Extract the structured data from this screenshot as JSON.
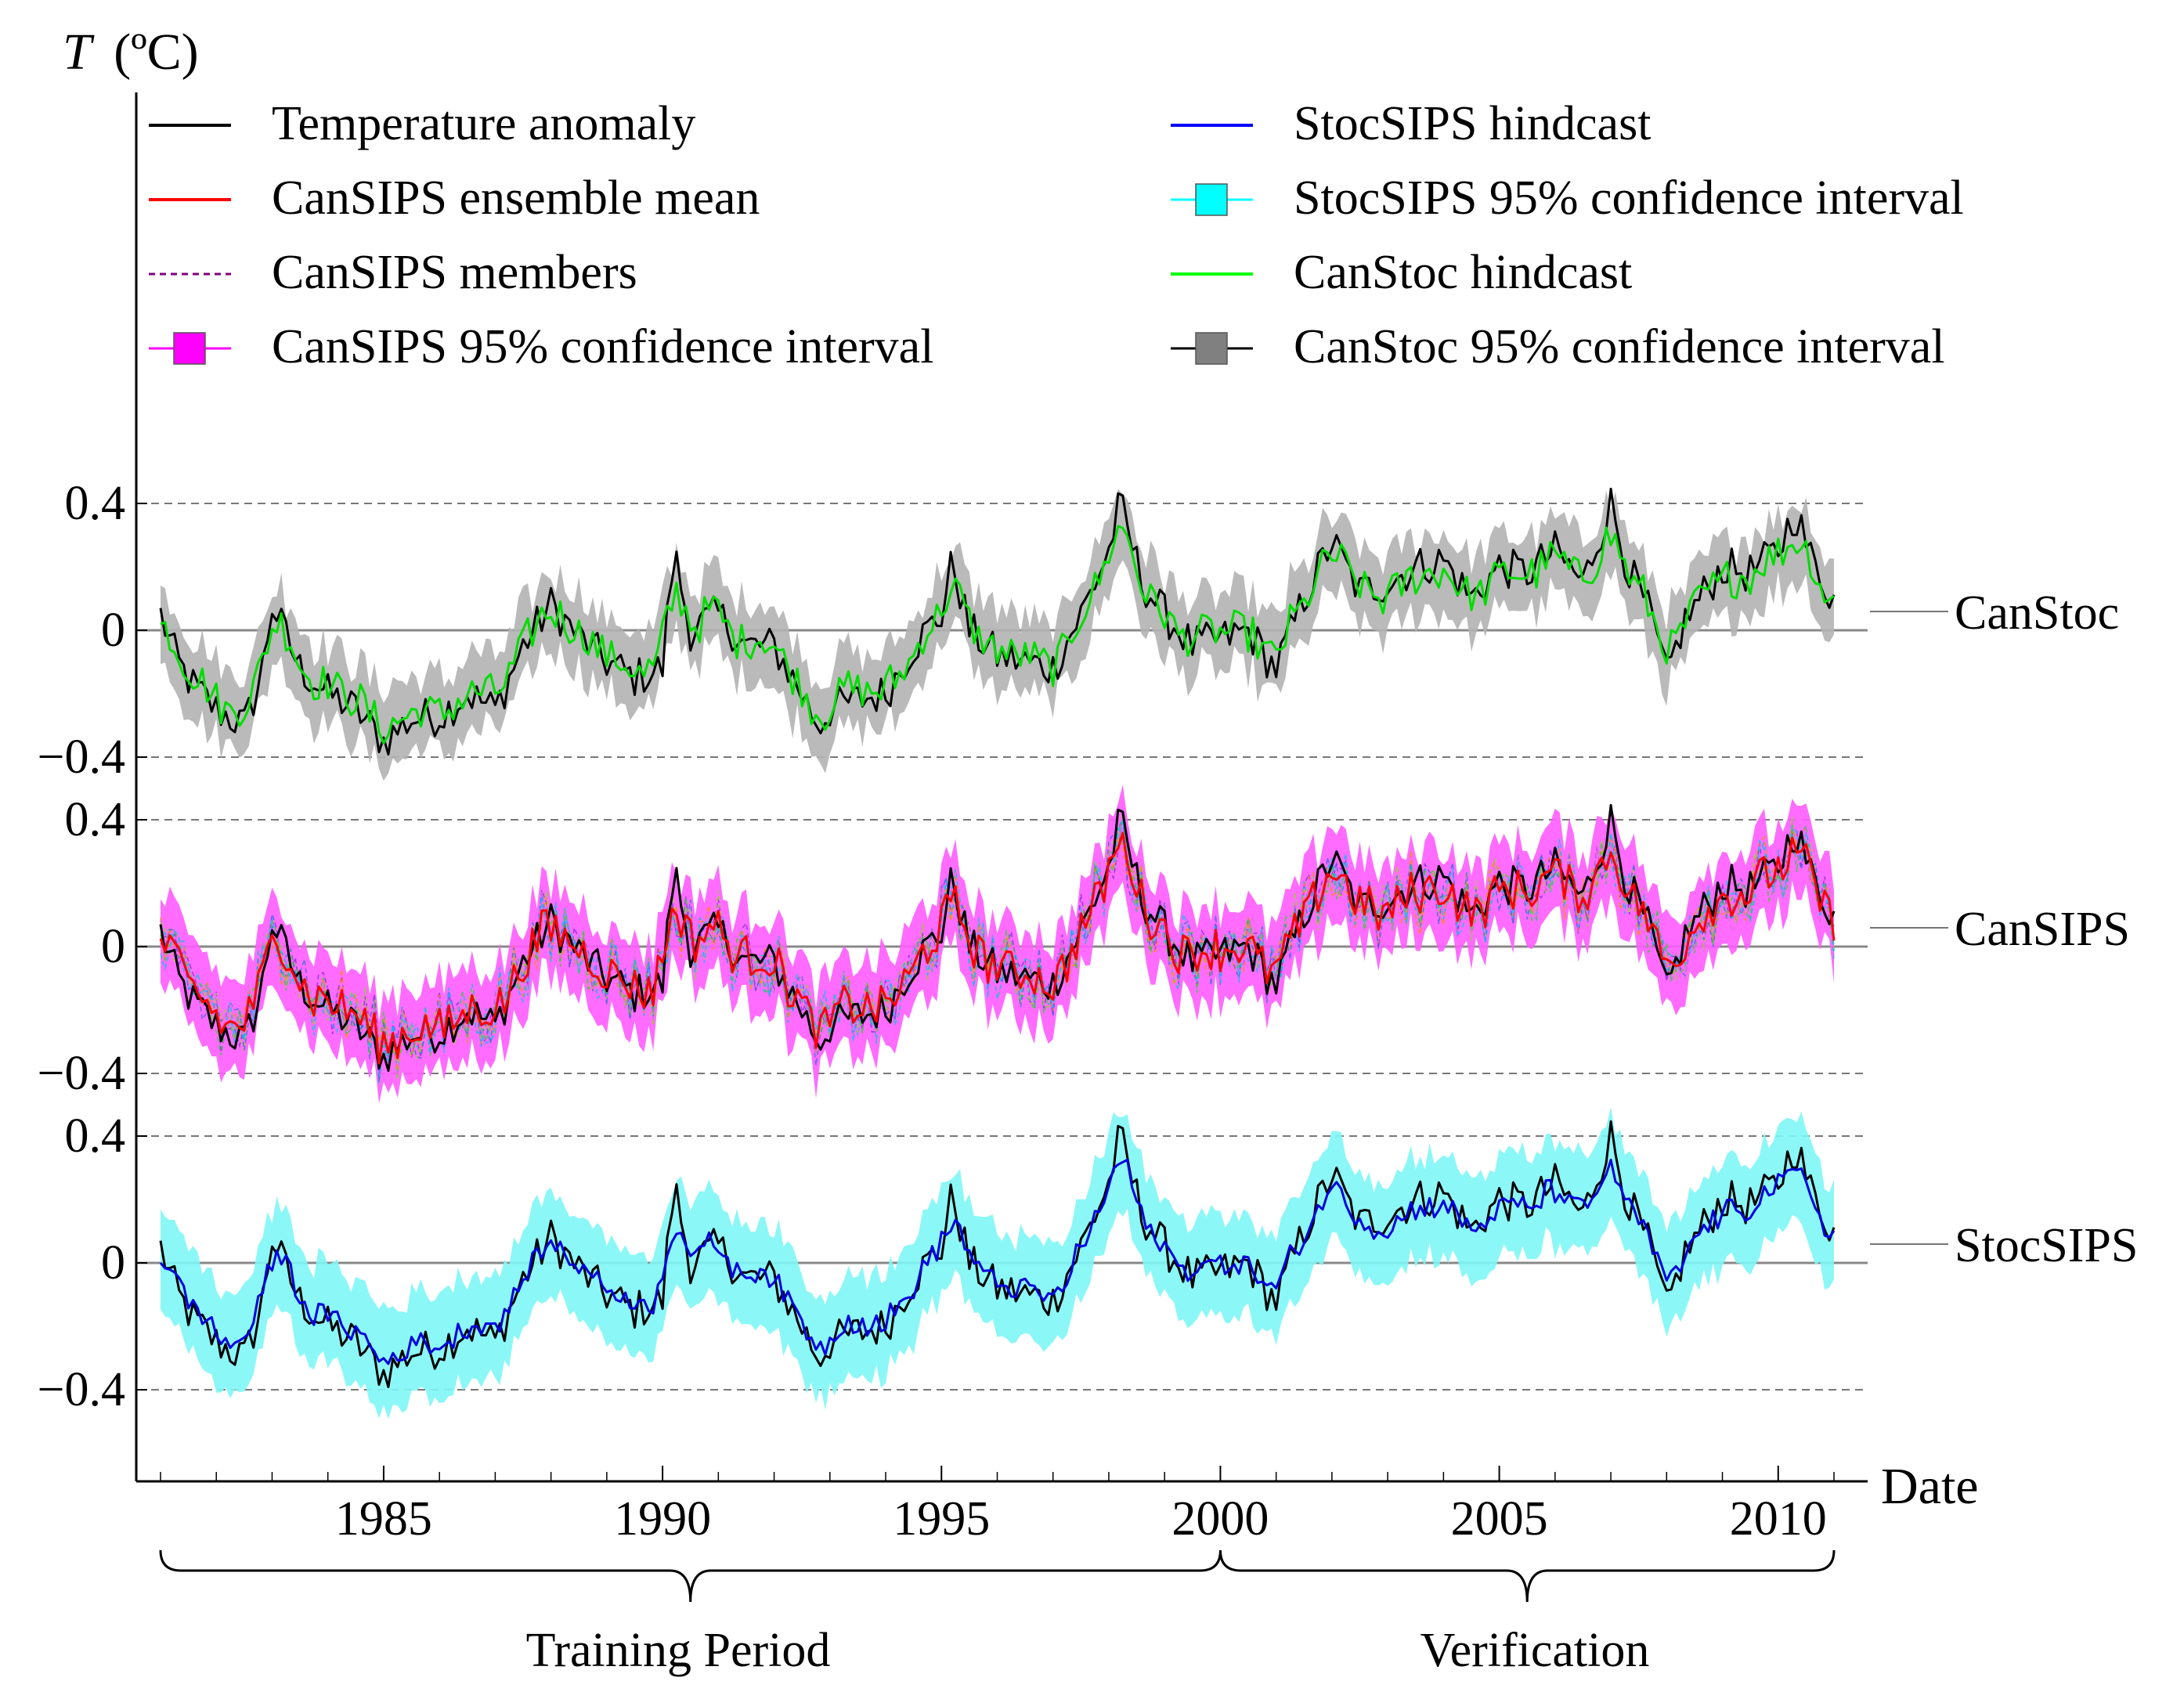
{
  "chart_data": {
    "type": "line",
    "y_axis_label": "T (ºC)",
    "y_axis_symbol": "T",
    "y_axis_unit": "(ºC)",
    "x_axis_label": "Date",
    "xlim": [
      1981.0,
      2011.0
    ],
    "x_ticks": [
      1985,
      1990,
      1995,
      2000,
      2005,
      2010
    ],
    "x_tick_labels": [
      "1985",
      "1990",
      "1995",
      "2000",
      "2005",
      "2010"
    ],
    "panel_y_ticks": [
      0.4,
      0,
      -0.4
    ],
    "panel_y_tick_labels": [
      "0.4",
      "0",
      "−0.4"
    ],
    "panel_ylim": [
      -0.55,
      0.55
    ],
    "legend": [
      {
        "id": "temp",
        "label": "Temperature anomaly",
        "color": "#000000",
        "style": "line"
      },
      {
        "id": "cansips_mean",
        "label": "CanSIPS ensemble mean",
        "color": "#ff0000",
        "style": "line"
      },
      {
        "id": "cansips_members",
        "label": "CanSIPS members",
        "color": "#800080",
        "style": "dashed"
      },
      {
        "id": "cansips_ci",
        "label": "CanSIPS 95% confidence interval",
        "color": "#ff00ff",
        "style": "box"
      },
      {
        "id": "stocsips",
        "label": "StocSIPS hindcast",
        "color": "#0000ff",
        "style": "line"
      },
      {
        "id": "stocsips_ci",
        "label": "StocSIPS 95% confidence interval",
        "color": "#00ffff",
        "style": "box"
      },
      {
        "id": "canstoc",
        "label": "CanStoc hindcast",
        "color": "#00ff00",
        "style": "line"
      },
      {
        "id": "canstoc_ci",
        "label": "CanStoc 95% confidence interval",
        "color": "#808080",
        "style": "box"
      }
    ],
    "panels": [
      {
        "name": "CanStoc",
        "model_color": "#00dd00",
        "band_color": "#b3b3b3",
        "band_halfwidth": 0.12,
        "noise": 0.06,
        "members": false
      },
      {
        "name": "CanSIPS",
        "model_color": "#ff0000",
        "band_color": "#ff5cff",
        "band_halfwidth": 0.14,
        "noise": 0.07,
        "members": true
      },
      {
        "name": "StocSIPS",
        "model_color": "#0000dd",
        "band_color": "#7ff6f6",
        "band_halfwidth": 0.16,
        "noise": 0.035,
        "members": false
      }
    ],
    "temperature_anomaly_keypoints": {
      "x": [
        1981.0,
        1981.3,
        1981.6,
        1982.0,
        1982.5,
        1982.8,
        1983.0,
        1983.5,
        1984.0,
        1984.5,
        1985.0,
        1985.5,
        1986.0,
        1986.5,
        1987.0,
        1987.5,
        1988.0,
        1988.5,
        1989.0,
        1989.5,
        1990.0,
        1990.2,
        1990.5,
        1991.0,
        1991.5,
        1992.0,
        1992.5,
        1992.8,
        1993.0,
        1993.5,
        1994.0,
        1994.5,
        1995.0,
        1995.2,
        1995.5,
        1996.0,
        1996.5,
        1997.0,
        1997.5,
        1998.0,
        1998.2,
        1998.6,
        1999.0,
        1999.5,
        2000.0,
        2000.5,
        2000.8,
        2001.0,
        2001.5,
        2002.0,
        2002.5,
        2003.0,
        2003.5,
        2004.0,
        2004.5,
        2005.0,
        2005.5,
        2006.0,
        2006.5,
        2007.0,
        2007.3,
        2007.7,
        2008.0,
        2008.3,
        2008.6,
        2009.0,
        2009.5,
        2010.0,
        2010.3,
        2010.6,
        2011.0
      ],
      "y": [
        0.05,
        -0.1,
        -0.18,
        -0.25,
        -0.3,
        -0.15,
        0.08,
        -0.12,
        -0.2,
        -0.25,
        -0.35,
        -0.28,
        -0.27,
        -0.2,
        -0.25,
        -0.05,
        0.08,
        -0.02,
        -0.1,
        -0.15,
        -0.12,
        0.25,
        0.0,
        0.05,
        -0.05,
        -0.05,
        -0.2,
        -0.3,
        -0.25,
        -0.22,
        -0.2,
        -0.05,
        0.05,
        0.22,
        0.0,
        -0.08,
        -0.1,
        -0.12,
        0.05,
        0.25,
        0.4,
        0.15,
        0.05,
        -0.05,
        -0.03,
        0.0,
        -0.08,
        -0.12,
        0.1,
        0.28,
        0.12,
        0.15,
        0.2,
        0.22,
        0.1,
        0.2,
        0.18,
        0.25,
        0.15,
        0.4,
        0.2,
        0.05,
        -0.15,
        0.02,
        0.1,
        0.2,
        0.18,
        0.25,
        0.38,
        0.22,
        0.1
      ]
    },
    "verification_start": 2000.0
  },
  "annotations": {
    "training_label": "Training Period",
    "verification_label": "Verification"
  }
}
